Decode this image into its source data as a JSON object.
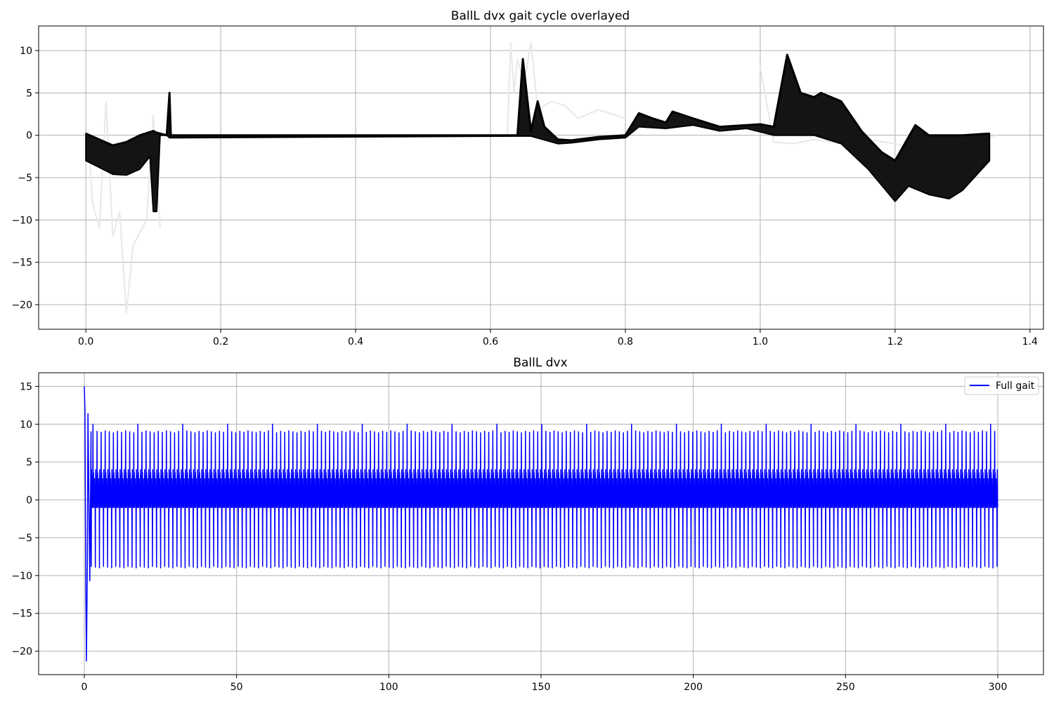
{
  "chart_data": [
    {
      "type": "line",
      "title": "BallL dvx gait cycle overlayed",
      "xlabel": "",
      "ylabel": "",
      "xlim": [
        -0.07,
        1.42
      ],
      "ylim": [
        -22.9,
        12.9
      ],
      "xticks": [
        0.0,
        0.2,
        0.4,
        0.6,
        0.8,
        1.0,
        1.2,
        1.4
      ],
      "xtick_labels": [
        "0.0",
        "0.2",
        "0.4",
        "0.6",
        "0.8",
        "1.0",
        "1.2",
        "1.4"
      ],
      "yticks": [
        10,
        5,
        0,
        -5,
        -10,
        -15,
        -20
      ],
      "ytick_labels": [
        "10",
        "5",
        "0",
        "−5",
        "−10",
        "−15",
        "−20"
      ],
      "grid": true,
      "legend": null,
      "series_color": "#000000",
      "overlay_note_color": "#e8e8e8",
      "envelope_upper": [
        [
          0.0,
          0.2
        ],
        [
          0.02,
          -0.5
        ],
        [
          0.04,
          -1.2
        ],
        [
          0.06,
          -0.8
        ],
        [
          0.08,
          0.0
        ],
        [
          0.1,
          0.5
        ],
        [
          0.105,
          0.3
        ],
        [
          0.12,
          0.0
        ],
        [
          0.124,
          5.0
        ],
        [
          0.126,
          0.0
        ],
        [
          0.64,
          0.0
        ],
        [
          0.648,
          9.0
        ],
        [
          0.655,
          4.0
        ],
        [
          0.66,
          0.5
        ],
        [
          0.67,
          4.0
        ],
        [
          0.68,
          1.0
        ],
        [
          0.7,
          -0.5
        ],
        [
          0.72,
          -0.6
        ],
        [
          0.76,
          -0.2
        ],
        [
          0.8,
          0.0
        ],
        [
          0.82,
          2.6
        ],
        [
          0.84,
          2.0
        ],
        [
          0.86,
          1.5
        ],
        [
          0.87,
          2.8
        ],
        [
          0.9,
          2.0
        ],
        [
          0.94,
          1.0
        ],
        [
          0.98,
          1.2
        ],
        [
          1.0,
          1.3
        ],
        [
          1.02,
          1.0
        ],
        [
          1.04,
          9.5
        ],
        [
          1.06,
          5.0
        ],
        [
          1.08,
          4.5
        ],
        [
          1.09,
          5.0
        ],
        [
          1.12,
          4.0
        ],
        [
          1.15,
          0.5
        ],
        [
          1.18,
          -2.0
        ],
        [
          1.2,
          -3.0
        ],
        [
          1.23,
          1.2
        ],
        [
          1.25,
          0.0
        ],
        [
          1.3,
          0.0
        ],
        [
          1.34,
          0.2
        ]
      ],
      "envelope_lower": [
        [
          0.0,
          -3.0
        ],
        [
          0.02,
          -3.8
        ],
        [
          0.04,
          -4.6
        ],
        [
          0.06,
          -4.7
        ],
        [
          0.08,
          -4.0
        ],
        [
          0.095,
          -2.5
        ],
        [
          0.1,
          -9.0
        ],
        [
          0.105,
          -9.0
        ],
        [
          0.11,
          0.0
        ],
        [
          0.12,
          0.0
        ],
        [
          0.124,
          -0.3
        ],
        [
          0.64,
          -0.1
        ],
        [
          0.66,
          -0.1
        ],
        [
          0.7,
          -1.0
        ],
        [
          0.72,
          -0.9
        ],
        [
          0.76,
          -0.5
        ],
        [
          0.8,
          -0.3
        ],
        [
          0.82,
          1.0
        ],
        [
          0.86,
          0.8
        ],
        [
          0.9,
          1.2
        ],
        [
          0.94,
          0.5
        ],
        [
          0.98,
          0.8
        ],
        [
          1.02,
          0.0
        ],
        [
          1.06,
          0.0
        ],
        [
          1.08,
          0.0
        ],
        [
          1.12,
          -1.0
        ],
        [
          1.16,
          -4.0
        ],
        [
          1.2,
          -7.8
        ],
        [
          1.22,
          -6.0
        ],
        [
          1.25,
          -7.0
        ],
        [
          1.28,
          -7.5
        ],
        [
          1.3,
          -6.5
        ],
        [
          1.34,
          -3.0
        ]
      ],
      "faint_traces": [
        [
          [
            0.005,
            -2.0
          ],
          [
            0.01,
            -8.0
          ],
          [
            0.02,
            -11.0
          ],
          [
            0.03,
            4.0
          ],
          [
            0.04,
            -12.0
          ],
          [
            0.05,
            -9.0
          ],
          [
            0.06,
            -21.0
          ],
          [
            0.07,
            -13.0
          ],
          [
            0.09,
            -10.0
          ],
          [
            0.1,
            2.5
          ],
          [
            0.11,
            -11.0
          ]
        ],
        [
          [
            0.625,
            0.0
          ],
          [
            0.63,
            11.0
          ],
          [
            0.635,
            5.0
          ],
          [
            0.64,
            9.0
          ],
          [
            0.65,
            6.0
          ],
          [
            0.66,
            11.0
          ],
          [
            0.67,
            3.0
          ],
          [
            0.69,
            4.0
          ],
          [
            0.71,
            3.5
          ],
          [
            0.73,
            2.0
          ],
          [
            0.76,
            3.0
          ],
          [
            0.8,
            2.0
          ]
        ],
        [
          [
            1.0,
            8.0
          ],
          [
            1.02,
            -0.8
          ],
          [
            1.05,
            -1.0
          ],
          [
            1.08,
            -0.5
          ],
          [
            1.12,
            -1.0
          ],
          [
            1.14,
            2.0
          ],
          [
            1.16,
            -0.5
          ],
          [
            1.2,
            -1.0
          ],
          [
            1.25,
            -2.0
          ],
          [
            1.3,
            -1.0
          ],
          [
            1.35,
            0.0
          ]
        ]
      ]
    },
    {
      "type": "line",
      "title": "BallL dvx",
      "xlabel": "",
      "ylabel": "",
      "xlim": [
        -15,
        315
      ],
      "ylim": [
        -23.1,
        16.8
      ],
      "xticks": [
        0,
        50,
        100,
        150,
        200,
        250,
        300
      ],
      "xtick_labels": [
        "0",
        "50",
        "100",
        "150",
        "200",
        "250",
        "300"
      ],
      "yticks": [
        15,
        10,
        5,
        0,
        -5,
        -10,
        -15,
        -20
      ],
      "ytick_labels": [
        "15",
        "10",
        "5",
        "0",
        "−5",
        "−10",
        "−15",
        "−20"
      ],
      "grid": true,
      "legend_position": "upper right",
      "series": [
        {
          "name": "Full gait",
          "color": "#0000ff",
          "x_range": [
            0,
            300
          ],
          "cycle_period": 1.34,
          "cycle_peak_max": 9.0,
          "cycle_peak_min": -8.8,
          "band_upper": 4.0,
          "band_lower": -1.0,
          "initial_transient": [
            [
              0.0,
              15.0
            ],
            [
              0.2,
              12.0
            ],
            [
              0.5,
              -12.5
            ],
            [
              0.7,
              -21.3
            ],
            [
              1.0,
              -8.0
            ],
            [
              1.2,
              11.4
            ],
            [
              1.8,
              -10.7
            ],
            [
              2.2,
              9.0
            ]
          ]
        }
      ]
    }
  ]
}
